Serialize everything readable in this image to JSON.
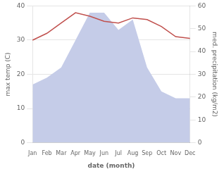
{
  "chart_data": {
    "type": "line",
    "categories": [
      "Jan",
      "Feb",
      "Mar",
      "Apr",
      "May",
      "Jun",
      "Jul",
      "Aug",
      "Sep",
      "Oct",
      "Nov",
      "Dec"
    ],
    "series": [
      {
        "type": "area",
        "color": "#c5cce8",
        "values": [
          17,
          19,
          22,
          30,
          38,
          38,
          33,
          36,
          22,
          15,
          13,
          13
        ]
      },
      {
        "type": "line",
        "color": "#c0504d",
        "values": [
          30,
          32,
          35,
          38,
          37,
          35.5,
          35,
          36.5,
          36,
          34,
          31,
          30.5
        ]
      }
    ],
    "xlabel": "date (month)",
    "ylabel": "max temp (C)",
    "y2label": "med. precipitation (kg/m2)",
    "ylim": [
      0,
      40
    ],
    "yticks": [
      0,
      10,
      20,
      30,
      40
    ],
    "y2lim": [
      0,
      60
    ],
    "y2ticks": [
      0,
      10,
      20,
      30,
      40,
      50,
      60
    ],
    "grid": true
  }
}
